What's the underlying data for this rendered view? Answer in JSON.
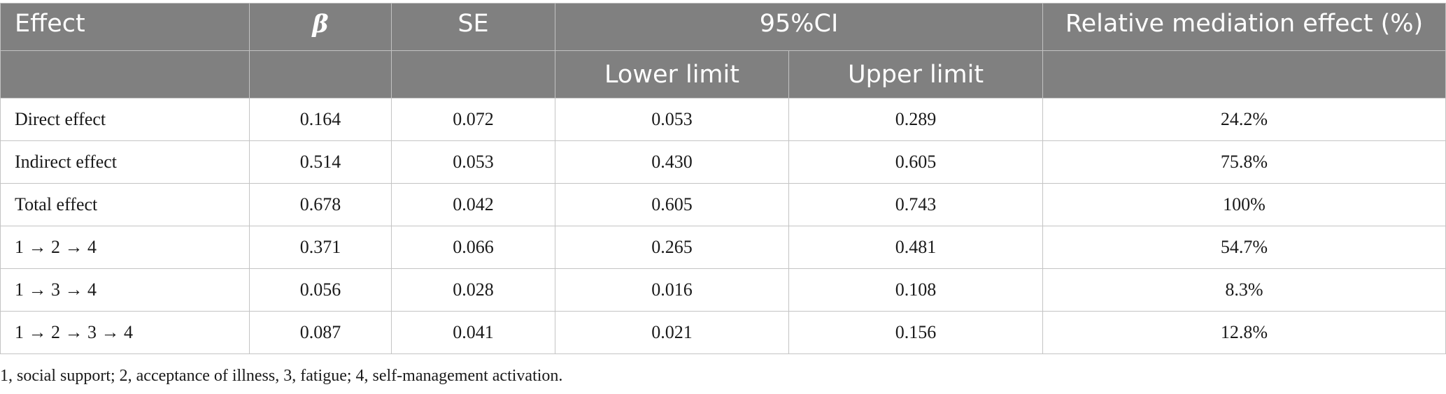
{
  "table": {
    "headers": {
      "effect": "Effect",
      "beta": "β",
      "se": "SE",
      "ci": "95%CI",
      "relative": "Relative mediation effect (%)",
      "lower": "Lower limit",
      "upper": "Upper limit"
    },
    "rows": [
      {
        "effect": "Direct effect",
        "beta": "0.164",
        "se": "0.072",
        "lower": "0.053",
        "upper": "0.289",
        "relative": "24.2%"
      },
      {
        "effect": "Indirect effect",
        "beta": "0.514",
        "se": "0.053",
        "lower": "0.430",
        "upper": "0.605",
        "relative": "75.8%"
      },
      {
        "effect": "Total effect",
        "beta": "0.678",
        "se": "0.042",
        "lower": "0.605",
        "upper": "0.743",
        "relative": "100%"
      },
      {
        "effect": "1 → 2 → 4",
        "beta": "0.371",
        "se": "0.066",
        "lower": "0.265",
        "upper": "0.481",
        "relative": "54.7%"
      },
      {
        "effect": "1 → 3 → 4",
        "beta": "0.056",
        "se": "0.028",
        "lower": "0.016",
        "upper": "0.108",
        "relative": "8.3%"
      },
      {
        "effect": "1 → 2 → 3 → 4",
        "beta": "0.087",
        "se": "0.041",
        "lower": "0.021",
        "upper": "0.156",
        "relative": "12.8%"
      }
    ]
  },
  "footnote": "1, social support; 2, acceptance of illness, 3, fatigue; 4, self-management activation."
}
